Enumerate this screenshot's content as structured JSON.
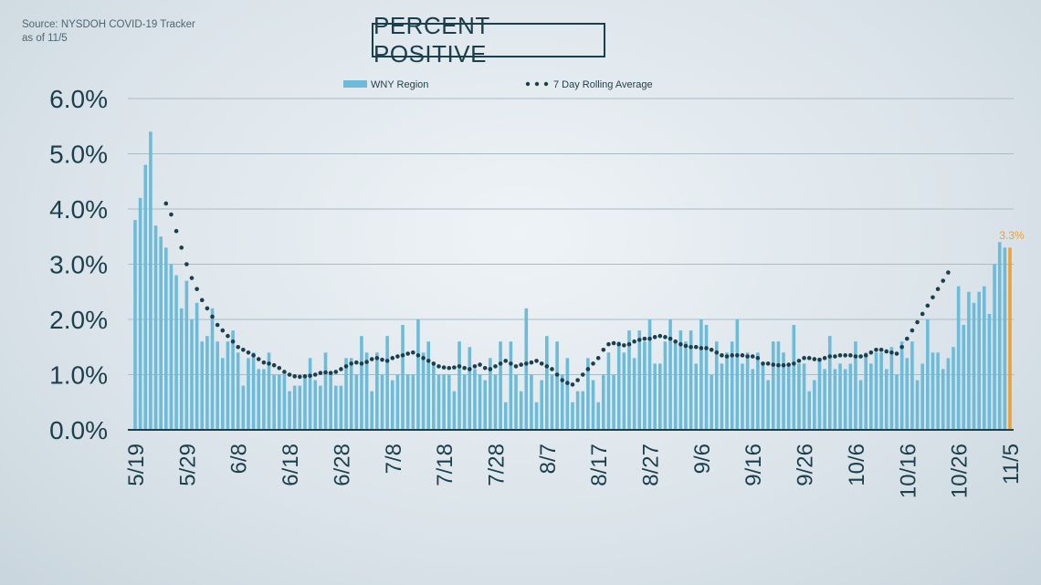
{
  "source": {
    "line1": "Source: NYSDOH COVID-19 Tracker",
    "line2": "as of 11/5"
  },
  "colors": {
    "bar": "#6cbcd9",
    "highlight_bar": "#f0a030",
    "rolling_dots": "#1b3f4d",
    "text": "#1b3f4d",
    "grid": "#a9bbc5"
  },
  "chart_data": {
    "type": "bar",
    "title": "PERCENT POSITIVE",
    "ylim": [
      0,
      6
    ],
    "y_ticks": [
      0,
      1,
      2,
      3,
      4,
      5,
      6
    ],
    "y_tick_labels": [
      "0.0%",
      "1.0%",
      "2.0%",
      "3.0%",
      "4.0%",
      "5.0%",
      "6.0%"
    ],
    "x_tick_labels": [
      "5/19",
      "5/29",
      "6/8",
      "6/18",
      "6/28",
      "7/8",
      "7/18",
      "7/28",
      "8/7",
      "8/17",
      "8/27",
      "9/6",
      "9/16",
      "9/26",
      "10/6",
      "10/16",
      "10/26",
      "11/5"
    ],
    "x_tick_day_index": [
      0,
      10,
      20,
      30,
      40,
      50,
      60,
      70,
      80,
      90,
      100,
      110,
      120,
      130,
      140,
      150,
      160,
      170
    ],
    "grid": true,
    "legend_position": "top-center",
    "annotation": {
      "label": "3.3%",
      "day_index": 170
    },
    "series": [
      {
        "name": "WNY Region",
        "kind": "bar",
        "start_day_index": 0,
        "values": [
          3.8,
          4.2,
          4.8,
          5.4,
          3.7,
          3.5,
          3.3,
          3.0,
          2.8,
          2.2,
          2.7,
          2.0,
          2.3,
          1.6,
          1.7,
          2.2,
          1.6,
          1.3,
          1.6,
          1.8,
          1.4,
          0.8,
          1.3,
          1.4,
          1.1,
          1.1,
          1.4,
          1.0,
          1.0,
          1.0,
          0.7,
          0.8,
          0.8,
          1.0,
          1.3,
          0.9,
          0.8,
          1.4,
          1.0,
          0.8,
          0.8,
          1.3,
          1.3,
          1.0,
          1.7,
          1.4,
          0.7,
          1.4,
          1.0,
          1.7,
          0.9,
          1.0,
          1.9,
          1.0,
          1.0,
          2.0,
          1.4,
          1.6,
          1.2,
          1.0,
          1.0,
          1.0,
          0.7,
          1.6,
          1.0,
          1.5,
          1.1,
          1.0,
          0.9,
          1.3,
          1.0,
          1.6,
          0.5,
          1.6,
          1.0,
          0.7,
          2.2,
          1.0,
          0.5,
          0.9,
          1.7,
          1.0,
          1.6,
          1.0,
          1.3,
          0.5,
          0.7,
          0.7,
          1.3,
          0.9,
          0.5,
          1.0,
          1.4,
          1.0,
          1.6,
          1.4,
          1.8,
          1.3,
          1.8,
          1.6,
          2.0,
          1.2,
          1.2,
          1.6,
          2.0,
          1.6,
          1.8,
          1.6,
          1.8,
          1.2,
          2.0,
          1.9,
          1.0,
          1.6,
          1.2,
          1.4,
          1.6,
          2.0,
          1.2,
          1.4,
          1.1,
          1.4,
          1.2,
          0.9,
          1.6,
          1.6,
          1.4,
          1.2,
          1.9,
          1.2,
          1.2,
          0.7,
          0.9,
          1.3,
          1.1,
          1.7,
          1.1,
          1.2,
          1.1,
          1.2,
          1.6,
          0.9,
          1.4,
          1.2,
          1.4,
          1.4,
          1.1,
          1.5,
          1.0,
          1.6,
          1.3,
          1.6,
          0.9,
          1.2,
          2.0,
          1.4,
          1.4,
          1.1,
          1.3,
          1.5,
          2.6,
          1.9,
          2.5,
          2.3,
          2.5,
          2.6,
          2.1,
          3.0,
          3.4,
          3.3,
          3.3
        ]
      },
      {
        "name": "7 Day Rolling Average",
        "kind": "dotted-line",
        "start_day_index": 6,
        "values": [
          4.1,
          3.9,
          3.6,
          3.3,
          3.0,
          2.75,
          2.55,
          2.35,
          2.2,
          2.05,
          1.9,
          1.8,
          1.7,
          1.6,
          1.5,
          1.45,
          1.4,
          1.35,
          1.28,
          1.22,
          1.2,
          1.17,
          1.12,
          1.05,
          1.0,
          0.97,
          0.96,
          0.97,
          0.98,
          1.0,
          1.03,
          1.04,
          1.03,
          1.05,
          1.1,
          1.15,
          1.2,
          1.22,
          1.2,
          1.23,
          1.28,
          1.3,
          1.27,
          1.25,
          1.3,
          1.33,
          1.35,
          1.38,
          1.4,
          1.35,
          1.3,
          1.25,
          1.2,
          1.15,
          1.13,
          1.12,
          1.13,
          1.15,
          1.12,
          1.1,
          1.15,
          1.18,
          1.12,
          1.1,
          1.15,
          1.2,
          1.25,
          1.2,
          1.15,
          1.18,
          1.2,
          1.22,
          1.25,
          1.2,
          1.15,
          1.1,
          1.0,
          0.9,
          0.85,
          0.82,
          0.9,
          1.0,
          1.1,
          1.2,
          1.3,
          1.45,
          1.55,
          1.57,
          1.55,
          1.53,
          1.55,
          1.6,
          1.63,
          1.65,
          1.65,
          1.68,
          1.7,
          1.68,
          1.65,
          1.6,
          1.55,
          1.52,
          1.5,
          1.5,
          1.48,
          1.48,
          1.45,
          1.4,
          1.35,
          1.33,
          1.35,
          1.35,
          1.35,
          1.33,
          1.33,
          1.3,
          1.2,
          1.2,
          1.18,
          1.17,
          1.17,
          1.18,
          1.2,
          1.25,
          1.3,
          1.3,
          1.28,
          1.27,
          1.3,
          1.33,
          1.33,
          1.35,
          1.35,
          1.35,
          1.33,
          1.33,
          1.35,
          1.4,
          1.45,
          1.45,
          1.42,
          1.4,
          1.38,
          1.5,
          1.65,
          1.8,
          1.95,
          2.1,
          2.25,
          2.4,
          2.55,
          2.7,
          2.85
        ]
      }
    ]
  }
}
